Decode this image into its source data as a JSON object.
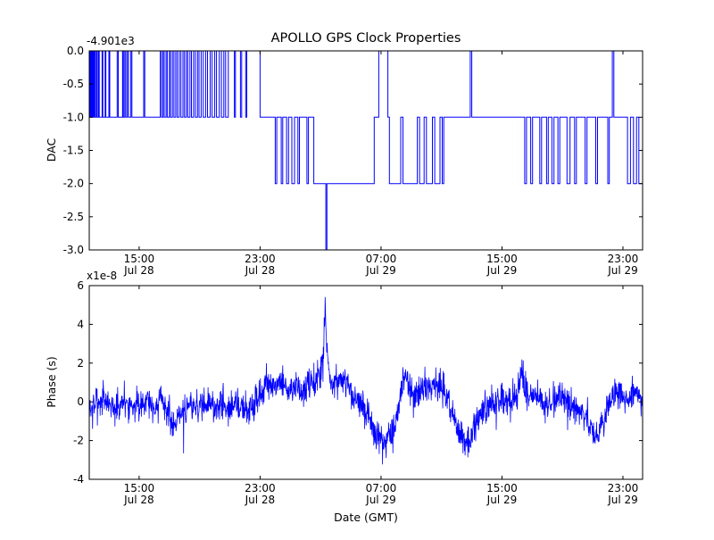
{
  "figure": {
    "title": "APOLLO GPS Clock Properties",
    "xlabel": "Date (GMT)",
    "line_color": "#0000ff",
    "background_color": "#ffffff",
    "frame_color": "#000000"
  },
  "chart_data": [
    {
      "type": "line",
      "subplot": "top",
      "title": "APOLLO GPS Clock Properties",
      "ylabel": "DAC",
      "y_offset_label": "-4.901e3",
      "ylim": [
        -3.0,
        0.0
      ],
      "yticks": [
        0.0,
        -0.5,
        -1.0,
        -1.5,
        -2.0,
        -2.5,
        -3.0
      ],
      "ytick_labels": [
        "0.0",
        "-0.5",
        "-1.0",
        "-1.5",
        "-2.0",
        "-2.5",
        "-3.0"
      ],
      "xlim": [
        11.7,
        48.3
      ],
      "xticks": [
        15,
        23,
        31,
        39,
        47
      ],
      "xtick_labels": [
        [
          "15:00",
          "Jul 28"
        ],
        [
          "23:00",
          "Jul 28"
        ],
        [
          "07:00",
          "Jul 29"
        ],
        [
          "15:00",
          "Jul 29"
        ],
        [
          "23:00",
          "Jul 29"
        ]
      ],
      "grid": false,
      "line_style": "step",
      "points": [
        [
          11.7,
          0
        ],
        [
          11.74,
          -1
        ],
        [
          11.78,
          0
        ],
        [
          11.84,
          -1
        ],
        [
          11.9,
          0
        ],
        [
          11.96,
          -1
        ],
        [
          12.02,
          0
        ],
        [
          12.08,
          -1
        ],
        [
          12.16,
          0
        ],
        [
          12.22,
          -1
        ],
        [
          12.3,
          0
        ],
        [
          12.36,
          -1
        ],
        [
          12.55,
          0
        ],
        [
          12.6,
          -1
        ],
        [
          12.75,
          0
        ],
        [
          12.8,
          -1
        ],
        [
          13.0,
          0
        ],
        [
          13.06,
          -1
        ],
        [
          13.55,
          0
        ],
        [
          13.62,
          -1
        ],
        [
          13.9,
          0
        ],
        [
          13.96,
          -1
        ],
        [
          14.05,
          0
        ],
        [
          14.12,
          -1
        ],
        [
          14.22,
          0
        ],
        [
          14.3,
          -1
        ],
        [
          14.45,
          0
        ],
        [
          14.52,
          -1
        ],
        [
          15.3,
          0
        ],
        [
          15.37,
          -1
        ],
        [
          16.4,
          0
        ],
        [
          16.48,
          -1
        ],
        [
          16.58,
          0
        ],
        [
          16.66,
          -1
        ],
        [
          16.78,
          0
        ],
        [
          16.86,
          -1
        ],
        [
          17.0,
          0
        ],
        [
          17.08,
          -1
        ],
        [
          17.2,
          0
        ],
        [
          17.3,
          -1
        ],
        [
          17.42,
          0
        ],
        [
          17.52,
          -1
        ],
        [
          17.65,
          0
        ],
        [
          17.76,
          -1
        ],
        [
          17.9,
          0
        ],
        [
          18.0,
          -1
        ],
        [
          18.12,
          0
        ],
        [
          18.22,
          -1
        ],
        [
          18.36,
          0
        ],
        [
          18.46,
          -1
        ],
        [
          18.6,
          0
        ],
        [
          18.72,
          -1
        ],
        [
          18.86,
          0
        ],
        [
          18.96,
          -1
        ],
        [
          19.1,
          0
        ],
        [
          19.24,
          -1
        ],
        [
          19.4,
          0
        ],
        [
          19.52,
          -1
        ],
        [
          19.7,
          0
        ],
        [
          19.82,
          -1
        ],
        [
          20.0,
          0
        ],
        [
          20.12,
          -1
        ],
        [
          20.3,
          0
        ],
        [
          20.44,
          -1
        ],
        [
          20.6,
          0
        ],
        [
          20.72,
          -1
        ],
        [
          20.9,
          0
        ],
        [
          21.3,
          -1
        ],
        [
          21.37,
          0
        ],
        [
          21.7,
          -1
        ],
        [
          21.78,
          0
        ],
        [
          22.05,
          -1
        ],
        [
          22.12,
          0
        ],
        [
          23.0,
          -1
        ],
        [
          24.0,
          -2
        ],
        [
          24.1,
          -1
        ],
        [
          24.4,
          -2
        ],
        [
          24.5,
          -1
        ],
        [
          24.75,
          -2
        ],
        [
          24.88,
          -1
        ],
        [
          25.1,
          -2
        ],
        [
          25.28,
          -1
        ],
        [
          25.5,
          -2
        ],
        [
          25.6,
          -1
        ],
        [
          26.1,
          -2
        ],
        [
          26.2,
          -1
        ],
        [
          26.55,
          -2
        ],
        [
          27.35,
          -3
        ],
        [
          27.42,
          -2
        ],
        [
          30.55,
          -1
        ],
        [
          30.85,
          0
        ],
        [
          31.45,
          -1
        ],
        [
          31.55,
          -2
        ],
        [
          32.3,
          -1
        ],
        [
          32.45,
          -2
        ],
        [
          33.4,
          -1
        ],
        [
          33.55,
          -2
        ],
        [
          33.85,
          -1
        ],
        [
          34.0,
          -2
        ],
        [
          34.4,
          -1
        ],
        [
          34.55,
          -2
        ],
        [
          34.9,
          -1
        ],
        [
          35.05,
          -2
        ],
        [
          35.15,
          -1
        ],
        [
          36.9,
          0
        ],
        [
          37.0,
          -1
        ],
        [
          40.5,
          -2
        ],
        [
          40.62,
          -1
        ],
        [
          40.9,
          -2
        ],
        [
          41.02,
          -1
        ],
        [
          41.5,
          -2
        ],
        [
          41.62,
          -1
        ],
        [
          41.95,
          -2
        ],
        [
          42.06,
          -1
        ],
        [
          42.3,
          -2
        ],
        [
          42.44,
          -1
        ],
        [
          42.7,
          -2
        ],
        [
          42.82,
          -1
        ],
        [
          43.3,
          -2
        ],
        [
          43.5,
          -1
        ],
        [
          43.8,
          -2
        ],
        [
          43.92,
          -1
        ],
        [
          44.5,
          -2
        ],
        [
          44.62,
          -1
        ],
        [
          45.2,
          -2
        ],
        [
          45.32,
          -1
        ],
        [
          46.0,
          -2
        ],
        [
          46.1,
          -1
        ],
        [
          46.3,
          0
        ],
        [
          46.4,
          -1
        ],
        [
          47.3,
          -2
        ],
        [
          47.5,
          -1
        ],
        [
          47.7,
          -2
        ],
        [
          47.9,
          -1
        ],
        [
          48.05,
          -2
        ],
        [
          48.3,
          -2
        ]
      ],
      "notes": "DAC steering value vs time; actual value = plotted value + offset -4.901e3. Step trace toggles between 0, -1, -2 with a single excursion to -3 near 03:20 Jul 29."
    },
    {
      "type": "line",
      "subplot": "bottom",
      "ylabel": "Phase (s)",
      "y_offset_label": "x1e-8",
      "ylim": [
        -4,
        6
      ],
      "yticks": [
        6,
        4,
        2,
        0,
        -2,
        -4
      ],
      "ytick_labels": [
        "6",
        "4",
        "2",
        "0",
        "-2",
        "-4"
      ],
      "xlim": [
        11.7,
        48.3
      ],
      "xticks": [
        15,
        23,
        31,
        39,
        47
      ],
      "xtick_labels": [
        [
          "15:00",
          "Jul 28"
        ],
        [
          "23:00",
          "Jul 28"
        ],
        [
          "07:00",
          "Jul 29"
        ],
        [
          "15:00",
          "Jul 29"
        ],
        [
          "23:00",
          "Jul 29"
        ]
      ],
      "grid": false,
      "line_style": "noisy",
      "sample_step_hours": 0.02,
      "noise_std": 0.42,
      "noise_seed": 7,
      "trend_keypoints": [
        [
          11.7,
          -0.3
        ],
        [
          12.5,
          0.1
        ],
        [
          13.0,
          0.0
        ],
        [
          13.5,
          -0.4
        ],
        [
          14.0,
          0.1
        ],
        [
          14.5,
          -0.2
        ],
        [
          15.0,
          -0.2
        ],
        [
          15.5,
          0.2
        ],
        [
          16.0,
          -0.3
        ],
        [
          16.5,
          0.2
        ],
        [
          17.0,
          -0.8
        ],
        [
          17.3,
          -1.2
        ],
        [
          17.6,
          -0.6
        ],
        [
          18.0,
          -0.4
        ],
        [
          18.5,
          -0.1
        ],
        [
          19.0,
          -0.3
        ],
        [
          19.5,
          0.0
        ],
        [
          20.0,
          -0.3
        ],
        [
          20.5,
          -0.1
        ],
        [
          21.0,
          -0.3
        ],
        [
          21.5,
          -0.1
        ],
        [
          22.0,
          -0.4
        ],
        [
          22.5,
          -0.2
        ],
        [
          23.0,
          0.3
        ],
        [
          23.4,
          0.9
        ],
        [
          23.8,
          0.7
        ],
        [
          24.2,
          1.0
        ],
        [
          24.6,
          0.8
        ],
        [
          25.0,
          0.5
        ],
        [
          25.4,
          0.8
        ],
        [
          25.8,
          0.4
        ],
        [
          26.2,
          0.8
        ],
        [
          26.6,
          1.0
        ],
        [
          27.0,
          1.4
        ],
        [
          27.2,
          2.2
        ],
        [
          27.3,
          5.8
        ],
        [
          27.4,
          3.0
        ],
        [
          27.55,
          1.2
        ],
        [
          27.8,
          0.7
        ],
        [
          28.2,
          1.1
        ],
        [
          28.6,
          0.9
        ],
        [
          29.0,
          0.6
        ],
        [
          29.4,
          0.1
        ],
        [
          29.8,
          -0.4
        ],
        [
          30.2,
          -0.9
        ],
        [
          30.6,
          -1.6
        ],
        [
          31.0,
          -2.0
        ],
        [
          31.3,
          -2.4
        ],
        [
          31.5,
          -1.9
        ],
        [
          31.8,
          -1.6
        ],
        [
          32.1,
          -0.6
        ],
        [
          32.4,
          1.0
        ],
        [
          32.7,
          1.4
        ],
        [
          33.0,
          0.6
        ],
        [
          33.3,
          0.2
        ],
        [
          33.7,
          0.5
        ],
        [
          34.1,
          0.9
        ],
        [
          34.5,
          0.6
        ],
        [
          34.9,
          0.9
        ],
        [
          35.3,
          0.2
        ],
        [
          35.7,
          -0.6
        ],
        [
          36.1,
          -1.4
        ],
        [
          36.5,
          -2.0
        ],
        [
          36.9,
          -2.1
        ],
        [
          37.3,
          -1.2
        ],
        [
          37.7,
          -0.5
        ],
        [
          38.1,
          -0.2
        ],
        [
          38.5,
          0.1
        ],
        [
          39.0,
          0.2
        ],
        [
          39.5,
          0.0
        ],
        [
          40.0,
          0.4
        ],
        [
          40.3,
          1.9
        ],
        [
          40.45,
          0.8
        ],
        [
          40.8,
          0.1
        ],
        [
          41.2,
          0.3
        ],
        [
          41.6,
          0.1
        ],
        [
          42.0,
          -0.2
        ],
        [
          42.4,
          0.1
        ],
        [
          42.8,
          0.3
        ],
        [
          43.2,
          0.1
        ],
        [
          43.6,
          -0.2
        ],
        [
          44.0,
          -0.4
        ],
        [
          44.4,
          -0.7
        ],
        [
          44.8,
          -1.2
        ],
        [
          45.2,
          -1.9
        ],
        [
          45.5,
          -1.4
        ],
        [
          45.8,
          -0.6
        ],
        [
          46.2,
          0.1
        ],
        [
          46.6,
          0.5
        ],
        [
          47.0,
          0.3
        ],
        [
          47.4,
          0.1
        ],
        [
          47.8,
          0.4
        ],
        [
          48.3,
          0.2
        ]
      ],
      "notable_features": {
        "peak": {
          "time": "~03:20 Jul 29",
          "value_x1e-8": 5.8
        },
        "minimum": {
          "time": "~07:30 Jul 29",
          "value_x1e-8": -3.3
        },
        "typical_band_x1e-8": [
          -1,
          1
        ]
      },
      "notes": "Noisy phase residual (units 1e-8 s) around 0 with large positive spike before 07:00 Jul 29 and negative dip at ~07:00 Jul 29. Trace reconstructed from trend keypoints + seeded noise of given std."
    }
  ]
}
